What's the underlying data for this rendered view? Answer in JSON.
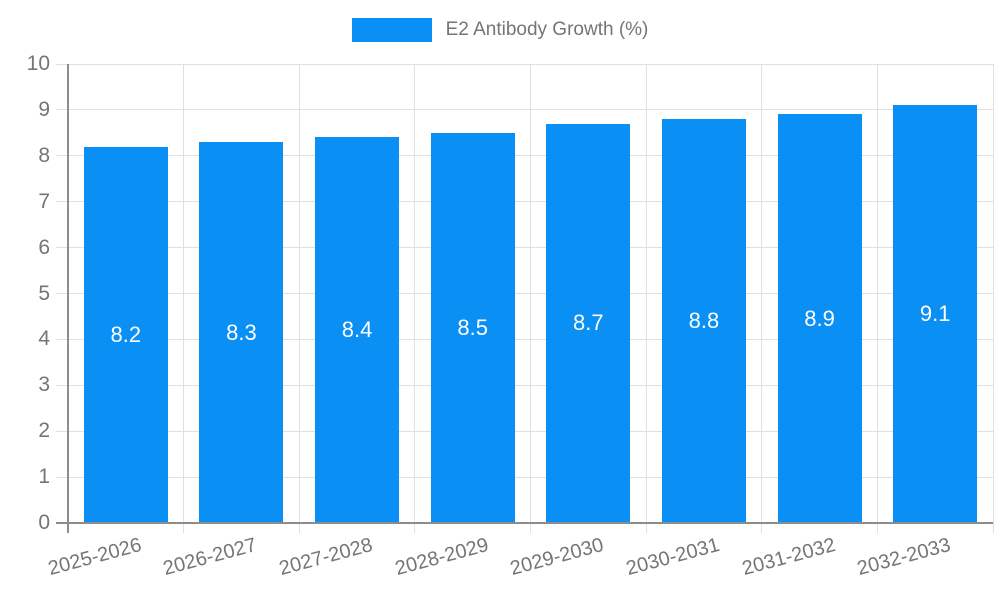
{
  "chart_data": {
    "type": "bar",
    "title": "",
    "legend_position": "top-center",
    "categories": [
      "2025-2026",
      "2026-2027",
      "2027-2028",
      "2028-2029",
      "2029-2030",
      "2030-2031",
      "2031-2032",
      "2032-2033"
    ],
    "series": [
      {
        "name": "E2 Antibody Growth (%)",
        "values": [
          8.2,
          8.3,
          8.4,
          8.5,
          8.7,
          8.8,
          8.9,
          9.1
        ]
      }
    ],
    "value_labels": [
      "8.2",
      "8.3",
      "8.4",
      "8.5",
      "8.7",
      "8.8",
      "8.9",
      "9.1"
    ],
    "xlabel": "",
    "ylabel": "",
    "ylim": [
      0,
      10
    ],
    "yticks": [
      0,
      1,
      2,
      3,
      4,
      5,
      6,
      7,
      8,
      9,
      10
    ],
    "grid": true,
    "xtick_rotation_deg": -15,
    "colors": {
      "bar": "#0a8ff5",
      "value_label": "#ffffff",
      "tick_text": "#757575",
      "legend_text": "#757575",
      "gridline": "#e0e0e0",
      "axis_line": "#8c8c8c"
    }
  }
}
